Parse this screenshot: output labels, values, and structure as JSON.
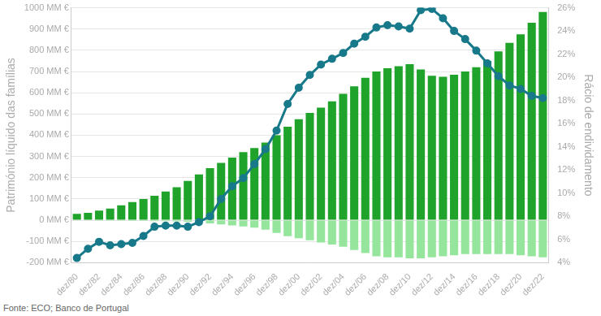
{
  "chart_data": {
    "type": "bar",
    "y_label": "Património líquido das famílias",
    "y2_label": "Rácio de endividamento",
    "source": "Fonte: ECO; Banco de Portugal",
    "categories": [
      "dez/80",
      null,
      "dez/82",
      null,
      "dez/84",
      null,
      "dez/86",
      null,
      "dez/88",
      null,
      "dez/90",
      null,
      "dez/92",
      null,
      "dez/94",
      null,
      "dez/96",
      null,
      "dez/98",
      null,
      "dez/00",
      null,
      "dez/02",
      null,
      "dez/04",
      null,
      "dez/06",
      null,
      "dez/08",
      null,
      "dez/10",
      null,
      "dez/12",
      null,
      "dez/14",
      null,
      "dez/16",
      null,
      "dez/18",
      null,
      "dez/20",
      null,
      "dez/22"
    ],
    "series": [
      {
        "type": "bar",
        "color": "#20a32a",
        "values": [
          30,
          35,
          45,
          55,
          70,
          85,
          100,
          115,
          135,
          155,
          185,
          215,
          245,
          270,
          295,
          320,
          340,
          365,
          400,
          440,
          475,
          505,
          530,
          560,
          595,
          630,
          670,
          700,
          715,
          725,
          735,
          710,
          680,
          675,
          685,
          700,
          720,
          750,
          795,
          835,
          875,
          930,
          980
        ]
      },
      {
        "type": "bar",
        "color": "#95e59c",
        "values": [
          -2,
          -2,
          -3,
          -3,
          -3,
          -4,
          -4,
          -5,
          -5,
          -6,
          -8,
          -10,
          -15,
          -20,
          -25,
          -30,
          -35,
          -45,
          -60,
          -75,
          -85,
          -95,
          -105,
          -115,
          -125,
          -140,
          -155,
          -170,
          -175,
          -175,
          -180,
          -180,
          -175,
          -170,
          -165,
          -160,
          -160,
          -160,
          -160,
          -160,
          -165,
          -170,
          -175
        ]
      },
      {
        "type": "line",
        "axis": "y2",
        "color": "#17798a",
        "marker": "circle",
        "values": [
          4.4,
          5.2,
          5.8,
          5.5,
          5.6,
          5.7,
          6.3,
          7.1,
          7.2,
          7.2,
          7.1,
          7.5,
          8.0,
          9.5,
          10.6,
          11.3,
          12.5,
          13.8,
          15.4,
          17.7,
          19.1,
          20.2,
          21.1,
          21.6,
          22.1,
          22.9,
          23.5,
          24.3,
          24.5,
          24.4,
          24.2,
          25.8,
          25.9,
          25.1,
          24.0,
          23.3,
          22.3,
          21.2,
          20.1,
          19.3,
          19.0,
          18.4,
          18.2
        ]
      }
    ],
    "ylim": [
      -200,
      1000
    ],
    "yticks": [
      {
        "value": -200,
        "label": "-200 MM €"
      },
      {
        "value": -100,
        "label": "-100 MM €"
      },
      {
        "value": 0,
        "label": "0 MM €"
      },
      {
        "value": 100,
        "label": "100 MM €"
      },
      {
        "value": 200,
        "label": "200 MM €"
      },
      {
        "value": 300,
        "label": "300 MM €"
      },
      {
        "value": 400,
        "label": "400 MM €"
      },
      {
        "value": 500,
        "label": "500 MM €"
      },
      {
        "value": 600,
        "label": "600 MM €"
      },
      {
        "value": 700,
        "label": "700 MM €"
      },
      {
        "value": 800,
        "label": "800 MM €"
      },
      {
        "value": 900,
        "label": "900 MM €"
      },
      {
        "value": 1000,
        "label": "1000 MM €"
      }
    ],
    "y2lim": [
      4,
      26
    ],
    "y2ticks": [
      {
        "value": 4,
        "label": "4%"
      },
      {
        "value": 6,
        "label": "6%"
      },
      {
        "value": 8,
        "label": "8%"
      },
      {
        "value": 10,
        "label": "10%"
      },
      {
        "value": 12,
        "label": "12%"
      },
      {
        "value": 14,
        "label": "14%"
      },
      {
        "value": 16,
        "label": "16%"
      },
      {
        "value": 18,
        "label": "18%"
      },
      {
        "value": 20,
        "label": "20%"
      },
      {
        "value": 22,
        "label": "22%"
      },
      {
        "value": 24,
        "label": "24%"
      },
      {
        "value": 26,
        "label": "26%"
      }
    ],
    "stacked": true,
    "grid": true
  }
}
